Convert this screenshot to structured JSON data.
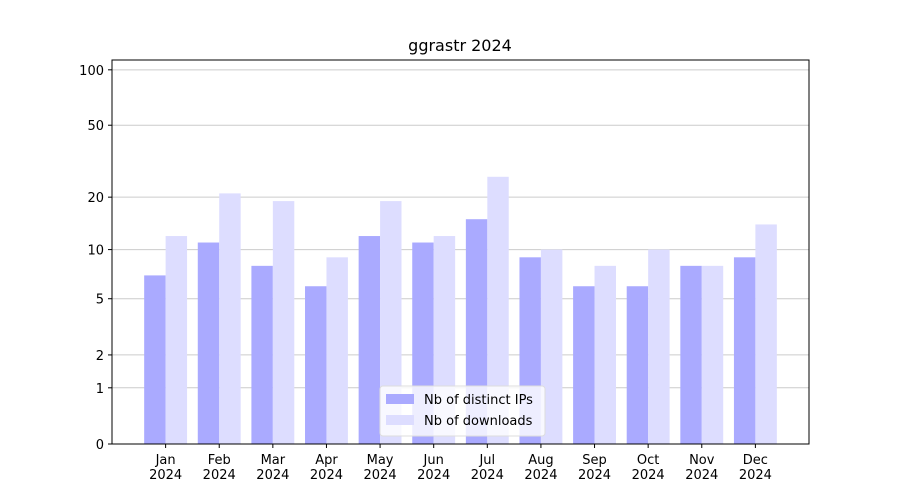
{
  "chart_data": {
    "type": "bar",
    "title": "ggrastr 2024",
    "scale": "log1p",
    "categories": [
      "Jan\n2024",
      "Feb\n2024",
      "Mar\n2024",
      "Apr\n2024",
      "May\n2024",
      "Jun\n2024",
      "Jul\n2024",
      "Aug\n2024",
      "Sep\n2024",
      "Oct\n2024",
      "Nov\n2024",
      "Dec\n2024"
    ],
    "series": [
      {
        "name": "Nb of distinct IPs",
        "color": "#aaaaff",
        "values": [
          7,
          11,
          8,
          6,
          12,
          11,
          15,
          9,
          6,
          6,
          8,
          9
        ]
      },
      {
        "name": "Nb of downloads",
        "color": "#ddddff",
        "values": [
          12,
          21,
          19,
          9,
          19,
          12,
          26,
          10,
          8,
          10,
          8,
          14
        ]
      }
    ],
    "ylim": [
      0,
      113
    ],
    "yticks": [
      0,
      1,
      2,
      5,
      10,
      20,
      50,
      100
    ],
    "grid": true,
    "legend": "lower center"
  }
}
